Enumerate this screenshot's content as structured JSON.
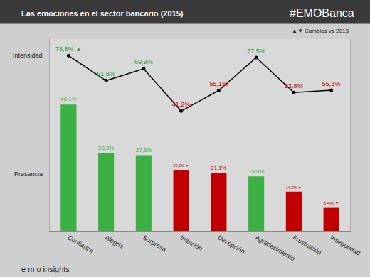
{
  "chart_data": {
    "type": "bar",
    "title": "Las emociones en el sector bancario (2015)",
    "annotations": [
      "#EMOBanca",
      "▲▼ Cambios vs 2013",
      "e m o insights"
    ],
    "categories": [
      "Confianza",
      "Alegría",
      "Sorpresa",
      "Irritación",
      "Decepción",
      "Agradecimiento",
      "Frustración",
      "Inseguridad"
    ],
    "series": [
      {
        "name": "Presencia",
        "type": "bar",
        "values": [
          46.1,
          28.3,
          27.6,
          22.2,
          21.1,
          19.9,
          14.3,
          8.4
        ],
        "value_labels": [
          "46,1%",
          "28,3%",
          "27,6%",
          "22,2% ▼",
          "21,1%",
          "19,9%",
          "14,3% ▼",
          "8,4% ▼"
        ],
        "colors": [
          "#3cb043",
          "#3cb043",
          "#3cb043",
          "#c00000",
          "#c00000",
          "#3cb043",
          "#c00000",
          "#c00000"
        ]
      },
      {
        "name": "Intensidad",
        "type": "line",
        "axis": "y2",
        "color": "#000000",
        "marker": "circle",
        "values": [
          78.8,
          61.8,
          69.9,
          41.2,
          55.1,
          77.5,
          53.8,
          55.3
        ],
        "value_labels": [
          "78,8% ▲",
          "61,8%",
          "69,9%",
          "41,2%",
          "55,1%",
          "77,5%",
          "53,8%",
          "55,3%"
        ],
        "colors": [
          "#2e9e3a",
          "#2e9e3a",
          "#2e9e3a",
          "#c00000",
          "#c00000",
          "#2e9e3a",
          "#c00000",
          "#c00000"
        ]
      }
    ],
    "ylim": [
      0,
      70
    ],
    "y2lim": [
      -40,
      90
    ],
    "data_labels": true,
    "tick_labels": "x"
  }
}
